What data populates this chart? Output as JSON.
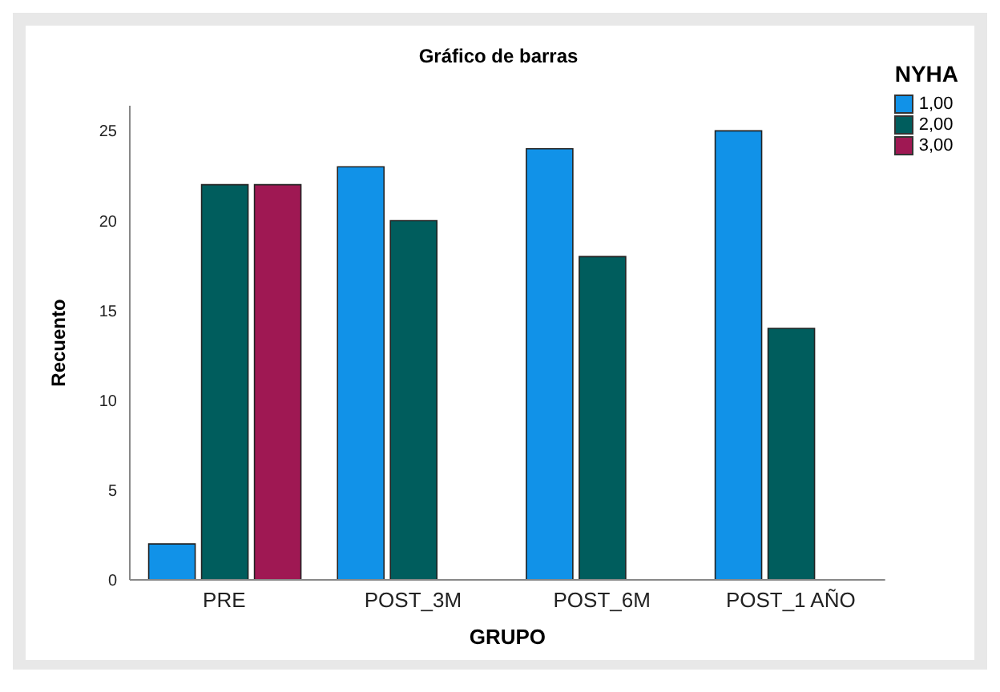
{
  "chart_data": {
    "type": "bar",
    "title": "Gráfico de barras",
    "xlabel": "GRUPO",
    "ylabel": "Recuento",
    "legend_title": "NYHA",
    "categories": [
      "PRE",
      "POST_3M",
      "POST_6M",
      "POST_1 AÑO"
    ],
    "series": [
      {
        "name": "1,00",
        "color": "#1192e8",
        "values": [
          2,
          23,
          24,
          25
        ]
      },
      {
        "name": "2,00",
        "color": "#005d5d",
        "values": [
          22,
          20,
          18,
          14
        ]
      },
      {
        "name": "3,00",
        "color": "#9f1853",
        "values": [
          22,
          null,
          null,
          null
        ]
      }
    ],
    "ylim": [
      0,
      26.4
    ],
    "yticks": [
      0,
      5,
      10,
      15,
      20,
      25
    ],
    "grid": false,
    "legend": "top right"
  }
}
